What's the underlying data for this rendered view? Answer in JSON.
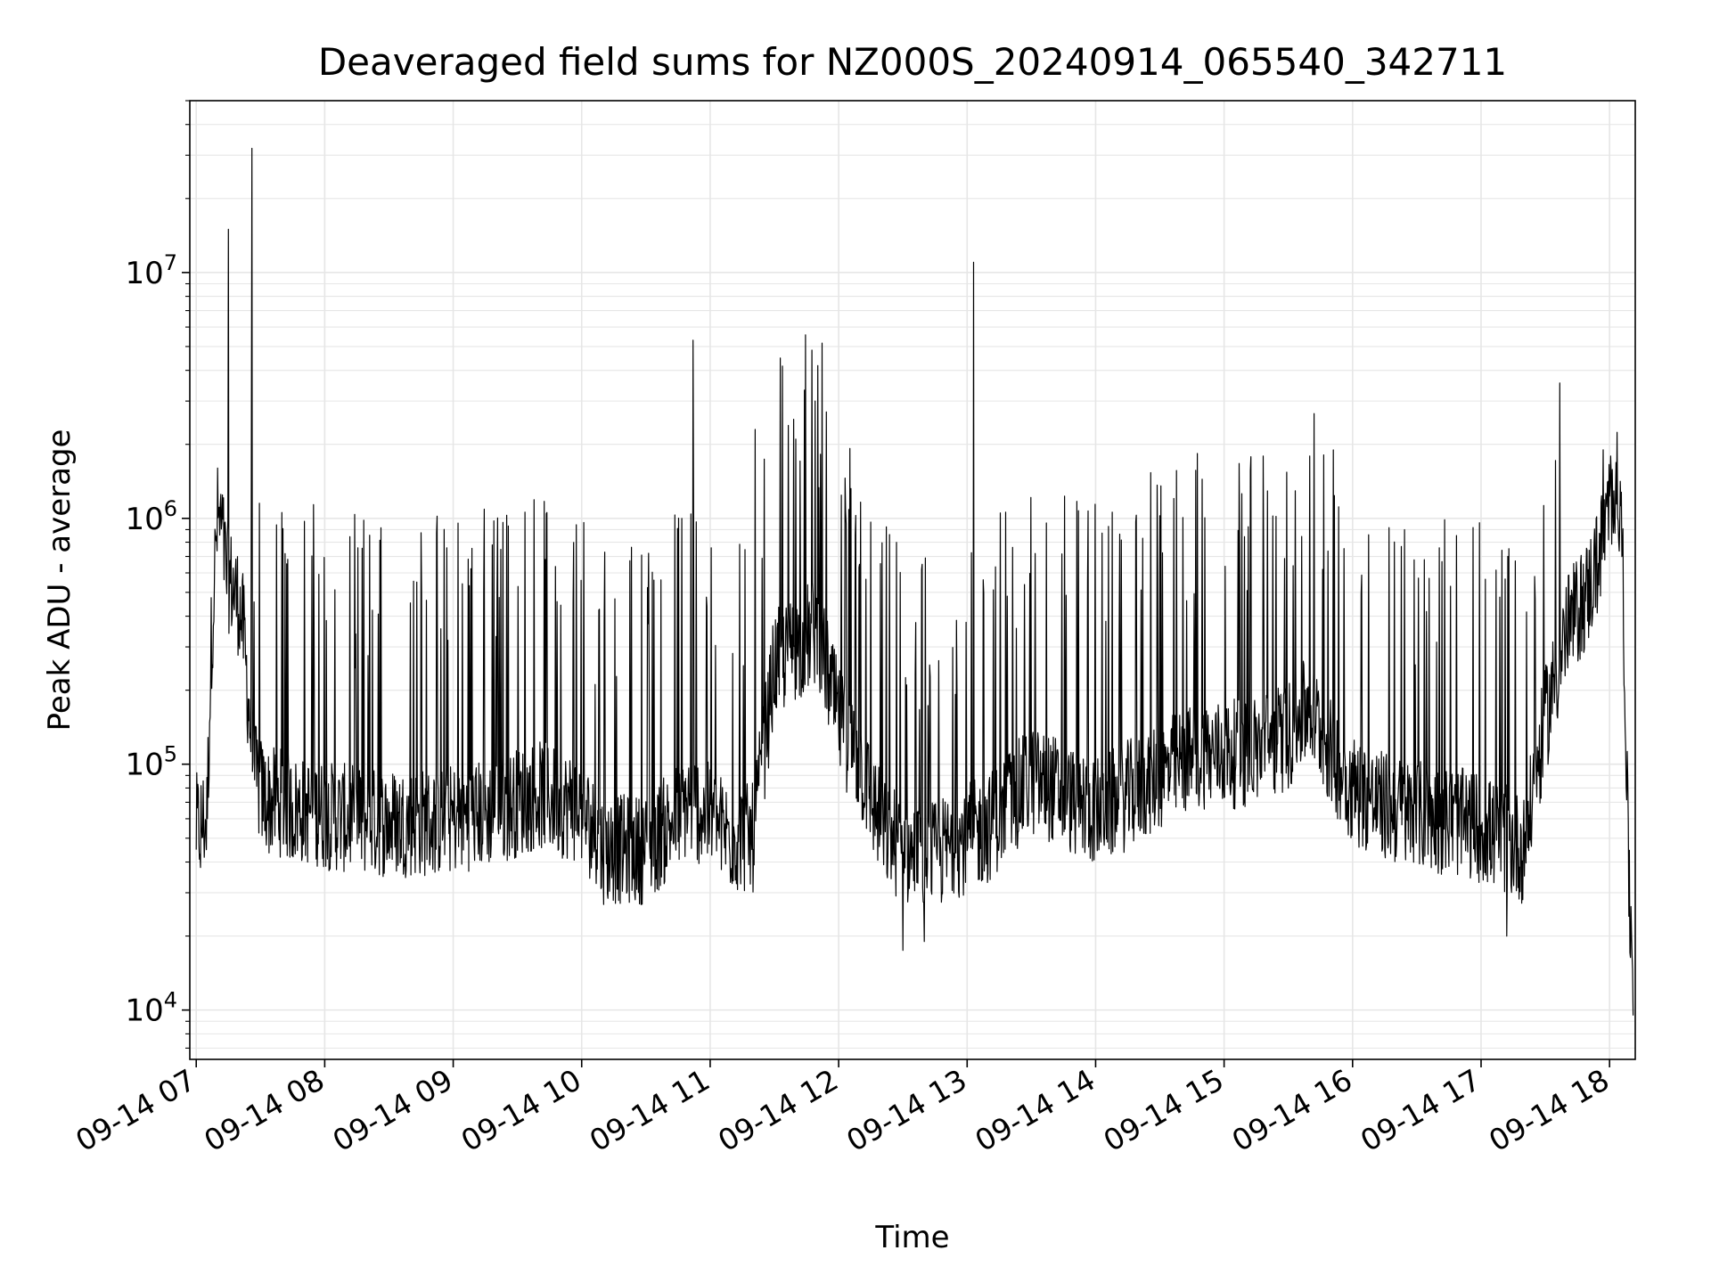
{
  "chart_data": {
    "type": "line",
    "title": "Deaveraged field sums for NZ000S_20240914_065540_342711",
    "xlabel": "Time",
    "ylabel": "Peak ADU - average",
    "y_scale": "log",
    "xlim": [
      "2024-09-14 06:57",
      "2024-09-14 18:12"
    ],
    "ylim": [
      6300,
      50000000
    ],
    "x_ticks": [
      "09-14 07",
      "09-14 08",
      "09-14 09",
      "09-14 10",
      "09-14 11",
      "09-14 12",
      "09-14 13",
      "09-14 14",
      "09-14 15",
      "09-14 16",
      "09-14 17",
      "09-14 18"
    ],
    "y_ticks": [
      {
        "value": 10000,
        "base": "10",
        "exp": "4"
      },
      {
        "value": 100000,
        "base": "10",
        "exp": "5"
      },
      {
        "value": 1000000,
        "base": "10",
        "exp": "6"
      },
      {
        "value": 10000000,
        "base": "10",
        "exp": "7"
      }
    ],
    "grid": true,
    "line_color": "#000000",
    "grid_color": "#e6e6e6",
    "series": [
      {
        "x": [
          "07:00",
          "07:05",
          "07:07",
          "07:09",
          "07:10",
          "07:12",
          "07:14",
          "07:16",
          "07:18",
          "07:20",
          "07:22",
          "07:25",
          "07:28",
          "07:31",
          "07:34",
          "07:37",
          "07:40",
          "07:45",
          "07:50",
          "07:55",
          "08:00",
          "08:10",
          "08:20",
          "08:30",
          "08:40",
          "08:50",
          "09:00",
          "09:10",
          "09:20",
          "09:30",
          "09:40",
          "09:50",
          "10:00",
          "10:10",
          "10:20",
          "10:30",
          "10:40",
          "10:50",
          "11:00",
          "11:10",
          "11:20",
          "11:30",
          "11:40",
          "11:50",
          "12:00",
          "12:10",
          "12:20",
          "12:30",
          "12:40",
          "12:50",
          "13:00",
          "13:10",
          "13:20",
          "13:30",
          "13:40",
          "13:50",
          "14:00",
          "14:10",
          "14:20",
          "14:30",
          "14:40",
          "14:50",
          "15:00",
          "15:10",
          "15:20",
          "15:30",
          "15:40",
          "15:50",
          "16:00",
          "16:10",
          "16:20",
          "16:30",
          "16:40",
          "16:50",
          "17:00",
          "17:10",
          "17:20",
          "17:30",
          "17:40",
          "17:50",
          "17:55",
          "17:59",
          "18:03",
          "18:06",
          "18:09",
          "18:11"
        ],
        "y": [
          55000,
          60000,
          300000,
          700000,
          1000000,
          900000,
          600000,
          550000,
          500000,
          450000,
          350000,
          150000,
          85000,
          75000,
          70000,
          70000,
          70000,
          65000,
          65000,
          65000,
          62000,
          60000,
          58000,
          58000,
          58000,
          58000,
          60000,
          62000,
          65000,
          70000,
          75000,
          70000,
          65000,
          45000,
          45000,
          45000,
          55000,
          70000,
          60000,
          50000,
          50000,
          250000,
          300000,
          350000,
          150000,
          100000,
          55000,
          45000,
          40000,
          45000,
          50000,
          55000,
          70000,
          85000,
          80000,
          70000,
          65000,
          70000,
          80000,
          90000,
          100000,
          110000,
          110000,
          110000,
          120000,
          130000,
          170000,
          110000,
          80000,
          70000,
          65000,
          62000,
          60000,
          58000,
          55000,
          50000,
          45000,
          150000,
          350000,
          500000,
          700000,
          1000000,
          1500000,
          800000,
          30000,
          15000
        ],
        "spikes": [
          {
            "x": "07:15",
            "y": 15000000
          },
          {
            "x": "07:26",
            "y": 32000000
          },
          {
            "x": "10:52",
            "y": 5300000
          },
          {
            "x": "11:21",
            "y": 2300000
          },
          {
            "x": "11:40",
            "y": 2100000
          },
          {
            "x": "11:49",
            "y": 3000000
          },
          {
            "x": "13:03",
            "y": 11000000
          },
          {
            "x": "17:57",
            "y": 1900000
          }
        ],
        "troughs": [
          {
            "x": "07:02",
            "y": 38000
          },
          {
            "x": "12:30",
            "y": 17500
          },
          {
            "x": "12:40",
            "y": 19000
          },
          {
            "x": "17:12",
            "y": 20000
          },
          {
            "x": "18:11",
            "y": 9500
          }
        ]
      }
    ]
  }
}
